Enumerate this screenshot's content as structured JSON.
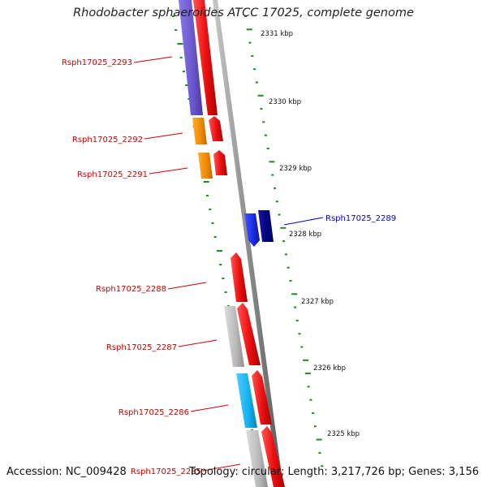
{
  "title": "Rhodobacter sphaeroides ATCC 17025, complete genome",
  "footer": {
    "accession": "Accession: NC_009428",
    "topology": "Topology: circular; Length: 3,217,726 bp; Genes: 3,156"
  },
  "colors": {
    "backbone": "#8c8c8c",
    "tick": "#1f8a1f",
    "gene_label": "#cc0000",
    "gene_label_highlight": "#0000cc",
    "cds": "#ee1111",
    "gene_purple": "#6a55cc",
    "gene_orange": "#ee8800",
    "gene_blue": "#1a2bdd",
    "gene_navy": "#000080",
    "gene_gray": "#b8b8b8",
    "gene_cyan": "#11b0ee"
  },
  "scale_labels": [
    "2331 kbp",
    "2330 kbp",
    "2329 kbp",
    "2328 kbp",
    "2327 kbp",
    "2326 kbp",
    "2325 kbp"
  ],
  "genes": [
    {
      "label": "Rsph17025_2293",
      "color": "purple",
      "highlight": false
    },
    {
      "label": "Rsph17025_2292",
      "color": "orange",
      "highlight": false
    },
    {
      "label": "Rsph17025_2291",
      "color": "orange",
      "highlight": false
    },
    {
      "label": "Rsph17025_2289",
      "color": "blue",
      "highlight": true
    },
    {
      "label": "Rsph17025_2288",
      "color": "none",
      "highlight": false
    },
    {
      "label": "Rsph17025_2287",
      "color": "gray",
      "highlight": false
    },
    {
      "label": "Rsph17025_2286",
      "color": "cyan",
      "highlight": false
    },
    {
      "label": "Rsph17025_2285",
      "color": "gray",
      "highlight": false
    }
  ]
}
